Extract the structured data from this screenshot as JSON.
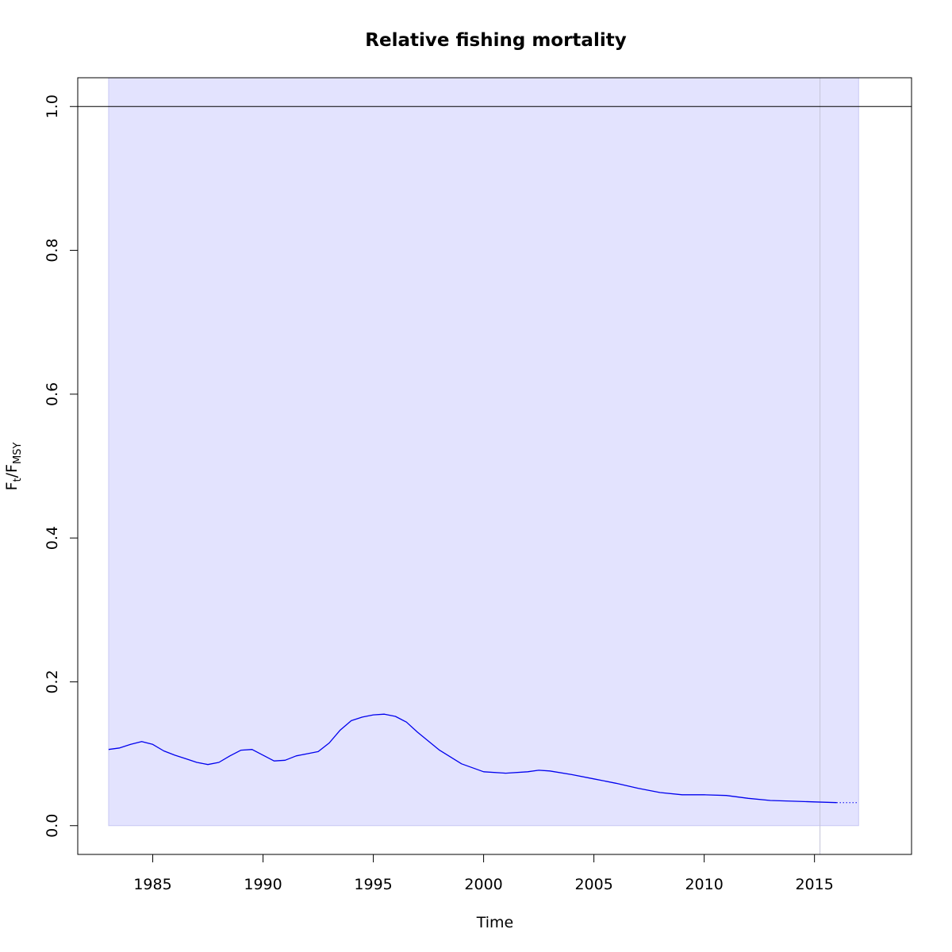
{
  "chart_data": {
    "type": "line",
    "title": "Relative fishing mortality",
    "xlabel": "Time",
    "ylabel": {
      "main": "F",
      "sub1": "t",
      "sep": "/",
      "main2": "F",
      "sub2": "MSY"
    },
    "xlim": [
      1981.6,
      2019.4
    ],
    "ylim": [
      -0.04,
      1.04
    ],
    "xticks": [
      1985,
      1990,
      1995,
      2000,
      2005,
      2010,
      2015
    ],
    "yticks": [
      0.0,
      0.2,
      0.4,
      0.6,
      0.8,
      1.0
    ],
    "ytick_labels": [
      "0.0",
      "0.2",
      "0.4",
      "0.6",
      "0.8",
      "1.0"
    ],
    "grid": false,
    "reference_line_y": 1.0,
    "data_end_vline_x": 2015.25,
    "band": {
      "x0": 1983.0,
      "x1": 2017.0,
      "ymin": 0.0,
      "ymax": 1.04,
      "color": "#e3e3fe",
      "edge": "#c8c8f4"
    },
    "series": [
      {
        "style": "solid",
        "color": "#0000ee",
        "x": [
          1983.0,
          1983.5,
          1984.0,
          1984.5,
          1985.0,
          1985.5,
          1986.0,
          1986.5,
          1987.0,
          1987.5,
          1988.0,
          1988.5,
          1989.0,
          1989.5,
          1990.0,
          1990.5,
          1991.0,
          1991.5,
          1992.0,
          1992.5,
          1993.0,
          1993.5,
          1994.0,
          1994.5,
          1995.0,
          1995.5,
          1996.0,
          1996.5,
          1997.0,
          1998.0,
          1999.0,
          2000.0,
          2001.0,
          2002.0,
          2002.5,
          2003.0,
          2004.0,
          2005.0,
          2006.0,
          2007.0,
          2008.0,
          2009.0,
          2010.0,
          2011.0,
          2012.0,
          2013.0,
          2014.0,
          2015.0,
          2016.0
        ],
        "y": [
          0.106,
          0.108,
          0.113,
          0.117,
          0.113,
          0.104,
          0.098,
          0.093,
          0.088,
          0.085,
          0.088,
          0.097,
          0.105,
          0.106,
          0.098,
          0.09,
          0.091,
          0.097,
          0.1,
          0.103,
          0.115,
          0.133,
          0.146,
          0.151,
          0.154,
          0.155,
          0.152,
          0.144,
          0.13,
          0.105,
          0.086,
          0.075,
          0.073,
          0.075,
          0.077,
          0.076,
          0.071,
          0.065,
          0.059,
          0.052,
          0.046,
          0.043,
          0.043,
          0.042,
          0.038,
          0.035,
          0.034,
          0.033,
          0.032
        ]
      },
      {
        "style": "dotted",
        "color": "#0000ee",
        "x": [
          2016.0,
          2017.0
        ],
        "y": [
          0.032,
          0.032
        ]
      }
    ]
  }
}
